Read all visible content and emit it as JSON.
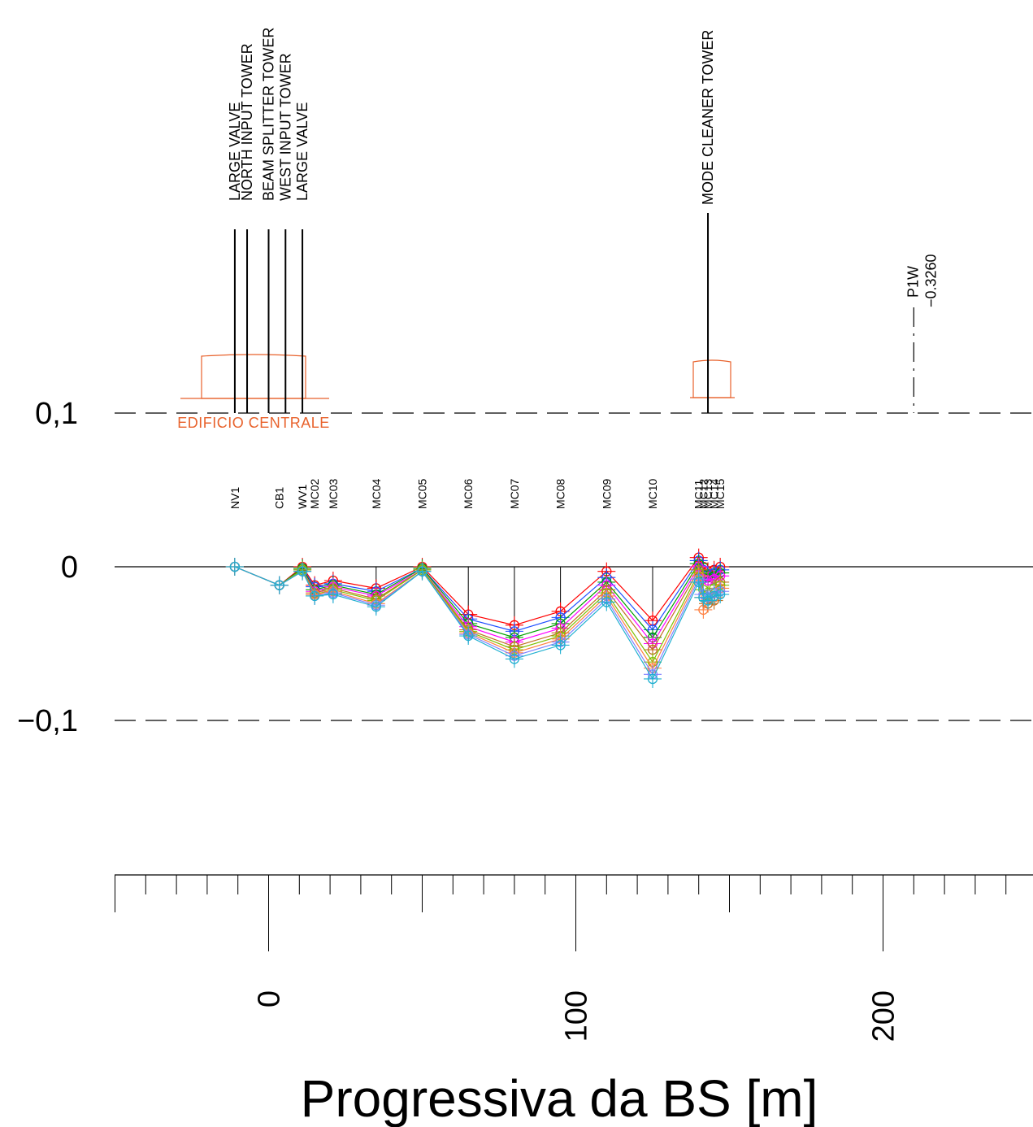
{
  "chart_data": {
    "type": "line",
    "xlabel": "Progressiva da BS [m]",
    "x_ticks": [
      {
        "value": 0,
        "label": "0"
      },
      {
        "value": 100,
        "label": "100"
      },
      {
        "value": 200,
        "label": "200"
      }
    ],
    "xlim": [
      -50,
      250
    ],
    "y_reference_lines": [
      {
        "value": 0.1,
        "label": "0,1",
        "style": "dashed"
      },
      {
        "value": 0,
        "label": "0",
        "style": "solid"
      },
      {
        "value": -0.1,
        "label": "−0,1",
        "style": "dashed"
      }
    ],
    "ylim": [
      -0.1,
      0.1
    ],
    "points": [
      {
        "name": "NV1",
        "x": -11
      },
      {
        "name": "CB1",
        "x": 3.5
      },
      {
        "name": "WV1",
        "x": 11
      },
      {
        "name": "MC02",
        "x": 15
      },
      {
        "name": "MC03",
        "x": 21
      },
      {
        "name": "MC04",
        "x": 35
      },
      {
        "name": "MC05",
        "x": 50
      },
      {
        "name": "MC06",
        "x": 65
      },
      {
        "name": "MC07",
        "x": 80
      },
      {
        "name": "MC08",
        "x": 95
      },
      {
        "name": "MC09",
        "x": 110
      },
      {
        "name": "MC10",
        "x": 125
      },
      {
        "name": "MC11",
        "x": 140
      },
      {
        "name": "MC12",
        "x": 141.5
      },
      {
        "name": "MC13",
        "x": 143
      },
      {
        "name": "MC14",
        "x": 145
      },
      {
        "name": "MC15",
        "x": 147
      }
    ],
    "series": [
      {
        "color": "#ff0000",
        "values": [
          0,
          -0.012,
          0,
          -0.012,
          -0.009,
          -0.014,
          0,
          -0.031,
          -0.038,
          -0.029,
          -0.003,
          -0.035,
          0.006,
          0,
          -0.003,
          -0.002,
          0
        ]
      },
      {
        "color": "#1f4fff",
        "values": [
          0,
          -0.012,
          -0.001,
          -0.013,
          -0.011,
          -0.016,
          -0.001,
          -0.034,
          -0.042,
          -0.033,
          -0.007,
          -0.041,
          0.004,
          -0.002,
          -0.005,
          -0.004,
          -0.002
        ]
      },
      {
        "color": "#00a000",
        "values": [
          0,
          -0.012,
          -0.001,
          -0.015,
          -0.012,
          -0.018,
          -0.001,
          -0.037,
          -0.046,
          -0.037,
          -0.01,
          -0.046,
          0.002,
          -0.005,
          -0.007,
          -0.006,
          -0.004
        ]
      },
      {
        "color": "#ff00ff",
        "values": [
          0,
          -0.012,
          -0.002,
          -0.016,
          -0.013,
          -0.019,
          -0.002,
          -0.039,
          -0.049,
          -0.04,
          -0.012,
          -0.05,
          0,
          -0.008,
          -0.009,
          -0.008,
          -0.006
        ]
      },
      {
        "color": "#c07020",
        "values": [
          0,
          -0.012,
          -0.002,
          -0.017,
          -0.014,
          -0.021,
          -0.002,
          -0.041,
          -0.052,
          -0.043,
          -0.015,
          -0.054,
          -0.002,
          -0.02,
          -0.024,
          -0.022,
          -0.01
        ]
      },
      {
        "color": "#7fbf00",
        "values": [
          0,
          -0.012,
          -0.002,
          -0.018,
          -0.015,
          -0.022,
          -0.002,
          -0.042,
          -0.054,
          -0.045,
          -0.017,
          -0.062,
          -0.004,
          -0.015,
          -0.018,
          -0.014,
          -0.012
        ]
      },
      {
        "color": "#ff8040",
        "values": [
          0,
          -0.012,
          -0.003,
          -0.018,
          -0.016,
          -0.024,
          -0.003,
          -0.043,
          -0.056,
          -0.047,
          -0.019,
          -0.066,
          -0.006,
          -0.028,
          -0.022,
          -0.02,
          -0.014
        ]
      },
      {
        "color": "#8080ff",
        "values": [
          0,
          -0.012,
          -0.003,
          -0.019,
          -0.017,
          -0.025,
          -0.003,
          -0.044,
          -0.058,
          -0.049,
          -0.021,
          -0.07,
          -0.008,
          -0.018,
          -0.02,
          -0.017,
          -0.016
        ]
      },
      {
        "color": "#20b0d0",
        "values": [
          0,
          -0.012,
          -0.003,
          -0.019,
          -0.018,
          -0.026,
          -0.003,
          -0.045,
          -0.06,
          -0.051,
          -0.023,
          -0.073,
          -0.01,
          -0.02,
          -0.022,
          -0.019,
          -0.018
        ]
      }
    ],
    "towers": [
      {
        "label": "LARGE VALVE",
        "x": -11
      },
      {
        "label": "NORTH INPUT TOWER",
        "x": -7
      },
      {
        "label": "BEAM SPLITTER TOWER",
        "x": 0
      },
      {
        "label": "WEST INPUT TOWER",
        "x": 5.5
      },
      {
        "label": "LARGE VALVE",
        "x": 11
      },
      {
        "label": "MODE CLEANER TOWER",
        "x": 143
      }
    ],
    "building_label": "EDIFICIO CENTRALE",
    "marker": {
      "label": "P1W",
      "value": "−0.3260",
      "x": 210
    }
  }
}
